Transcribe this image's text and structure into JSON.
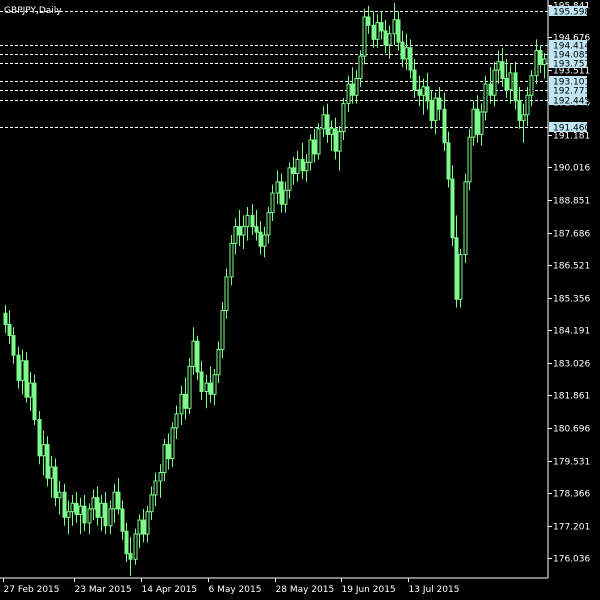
{
  "symbol_label": "GBPJPY,Daily",
  "colors": {
    "background": "#000000",
    "axis": "#ffffff",
    "bull": "#7CFC8A",
    "bear": "#7CFC8A",
    "level_line": "#ffffff",
    "level_box": "#bfe6f2"
  },
  "chart_data": {
    "type": "candlestick",
    "title": "",
    "xlabel": "",
    "ylabel": "",
    "ylim": [
      175.4,
      195.9
    ],
    "y_ticks": [
      "195.841",
      "194.676",
      "193.511",
      "192.346",
      "191.181",
      "190.016",
      "188.851",
      "187.686",
      "186.521",
      "185.356",
      "184.191",
      "183.026",
      "181.861",
      "180.696",
      "179.531",
      "178.366",
      "177.201",
      "176.036"
    ],
    "x_ticks": [
      "27 Feb 2015",
      "23 Mar 2015",
      "14 Apr 2015",
      "6 May 2015",
      "28 May 2015",
      "19 Jun 2015",
      "13 Jul 2015"
    ],
    "x_tick_index": [
      0,
      17,
      33,
      49,
      65,
      81,
      97
    ],
    "levels": [
      "195.598",
      "194.414",
      "194.085",
      "193.757",
      "193.101",
      "192.773",
      "192.445",
      "191.460"
    ],
    "candles": [
      [
        184.8,
        185.1,
        184.1,
        184.4
      ],
      [
        184.4,
        184.9,
        183.7,
        184.0
      ],
      [
        184.0,
        184.3,
        183.0,
        183.3
      ],
      [
        183.3,
        183.6,
        182.1,
        182.4
      ],
      [
        182.4,
        183.5,
        181.9,
        183.1
      ],
      [
        183.1,
        183.4,
        181.6,
        181.8
      ],
      [
        181.8,
        182.7,
        181.3,
        182.3
      ],
      [
        182.3,
        182.6,
        180.8,
        181.0
      ],
      [
        181.0,
        181.3,
        179.4,
        179.7
      ],
      [
        179.7,
        180.6,
        179.0,
        180.1
      ],
      [
        180.1,
        180.4,
        178.6,
        178.9
      ],
      [
        178.9,
        179.7,
        178.2,
        179.3
      ],
      [
        179.3,
        179.6,
        177.9,
        178.2
      ],
      [
        178.2,
        178.8,
        177.6,
        178.4
      ],
      [
        178.4,
        178.7,
        177.2,
        177.5
      ],
      [
        177.5,
        178.1,
        176.9,
        177.7
      ],
      [
        177.7,
        178.3,
        177.2,
        178.0
      ],
      [
        178.0,
        178.4,
        177.3,
        177.6
      ],
      [
        177.6,
        178.2,
        176.9,
        177.9
      ],
      [
        177.9,
        178.3,
        177.0,
        177.3
      ],
      [
        177.3,
        178.0,
        176.9,
        177.8
      ],
      [
        177.8,
        178.5,
        177.4,
        178.2
      ],
      [
        178.2,
        178.6,
        177.2,
        177.5
      ],
      [
        177.5,
        178.3,
        177.0,
        178.0
      ],
      [
        178.0,
        178.4,
        176.9,
        177.2
      ],
      [
        177.2,
        178.1,
        176.9,
        177.8
      ],
      [
        177.8,
        178.7,
        177.3,
        178.4
      ],
      [
        178.4,
        178.9,
        177.6,
        177.8
      ],
      [
        177.8,
        178.1,
        176.7,
        177.0
      ],
      [
        177.0,
        177.3,
        175.9,
        176.2
      ],
      [
        176.2,
        176.8,
        175.4,
        176.0
      ],
      [
        176.0,
        177.1,
        175.8,
        176.9
      ],
      [
        176.9,
        177.6,
        176.4,
        177.4
      ],
      [
        177.4,
        177.8,
        176.6,
        176.9
      ],
      [
        176.9,
        177.9,
        176.6,
        177.7
      ],
      [
        177.7,
        178.6,
        177.4,
        178.3
      ],
      [
        178.3,
        179.1,
        177.9,
        178.8
      ],
      [
        178.8,
        179.4,
        178.2,
        179.1
      ],
      [
        179.1,
        180.3,
        178.8,
        180.1
      ],
      [
        180.1,
        180.5,
        179.2,
        179.6
      ],
      [
        179.6,
        180.9,
        179.3,
        180.7
      ],
      [
        180.7,
        181.5,
        180.3,
        181.2
      ],
      [
        181.2,
        182.2,
        180.8,
        181.9
      ],
      [
        181.9,
        182.5,
        181.0,
        181.4
      ],
      [
        181.4,
        183.2,
        181.2,
        182.9
      ],
      [
        182.9,
        184.3,
        182.6,
        183.8
      ],
      [
        183.8,
        184.0,
        182.4,
        182.7
      ],
      [
        182.7,
        183.1,
        181.7,
        182.0
      ],
      [
        182.0,
        182.6,
        181.4,
        182.3
      ],
      [
        182.3,
        182.9,
        181.6,
        181.9
      ],
      [
        181.9,
        182.8,
        181.5,
        182.6
      ],
      [
        182.6,
        183.8,
        182.3,
        183.5
      ],
      [
        183.5,
        185.2,
        183.2,
        184.9
      ],
      [
        184.9,
        186.4,
        184.6,
        186.1
      ],
      [
        186.1,
        187.6,
        185.8,
        187.3
      ],
      [
        187.3,
        188.2,
        186.9,
        187.9
      ],
      [
        187.9,
        188.5,
        187.2,
        187.6
      ],
      [
        187.6,
        188.3,
        187.1,
        187.9
      ],
      [
        187.9,
        188.6,
        187.4,
        188.3
      ],
      [
        188.3,
        188.7,
        187.6,
        187.9
      ],
      [
        187.9,
        188.5,
        187.4,
        187.7
      ],
      [
        187.7,
        188.1,
        186.9,
        187.2
      ],
      [
        187.2,
        187.9,
        186.8,
        187.6
      ],
      [
        187.6,
        188.6,
        187.3,
        188.4
      ],
      [
        188.4,
        189.4,
        188.1,
        189.1
      ],
      [
        189.1,
        189.9,
        188.7,
        189.5
      ],
      [
        189.5,
        189.8,
        188.4,
        188.7
      ],
      [
        188.7,
        189.5,
        188.4,
        189.2
      ],
      [
        189.2,
        190.2,
        188.9,
        190.0
      ],
      [
        190.0,
        190.4,
        189.4,
        189.8
      ],
      [
        189.8,
        190.6,
        189.5,
        190.3
      ],
      [
        190.3,
        190.9,
        189.6,
        189.9
      ],
      [
        189.9,
        190.5,
        189.5,
        190.2
      ],
      [
        190.2,
        191.2,
        189.9,
        191.0
      ],
      [
        191.0,
        191.4,
        190.2,
        190.5
      ],
      [
        190.5,
        191.6,
        190.3,
        191.4
      ],
      [
        191.4,
        192.2,
        191.1,
        191.9
      ],
      [
        191.9,
        192.3,
        190.9,
        191.2
      ],
      [
        191.2,
        191.7,
        190.6,
        191.4
      ],
      [
        191.4,
        191.8,
        190.3,
        190.6
      ],
      [
        190.6,
        191.5,
        189.9,
        191.3
      ],
      [
        191.3,
        192.5,
        191.0,
        192.3
      ],
      [
        192.3,
        193.3,
        192.0,
        193.0
      ],
      [
        193.0,
        193.6,
        192.3,
        192.6
      ],
      [
        192.6,
        193.5,
        192.3,
        193.2
      ],
      [
        193.2,
        194.2,
        192.9,
        194.0
      ],
      [
        194.0,
        195.7,
        193.7,
        195.4
      ],
      [
        195.4,
        195.8,
        194.8,
        195.1
      ],
      [
        195.1,
        195.6,
        194.3,
        194.6
      ],
      [
        194.6,
        195.5,
        194.3,
        195.2
      ],
      [
        195.2,
        195.6,
        194.6,
        194.9
      ],
      [
        194.9,
        195.3,
        194.1,
        194.4
      ],
      [
        194.4,
        195.1,
        193.9,
        194.8
      ],
      [
        194.8,
        195.9,
        194.4,
        195.3
      ],
      [
        195.3,
        195.6,
        194.2,
        194.5
      ],
      [
        194.5,
        194.9,
        193.6,
        193.9
      ],
      [
        193.9,
        194.8,
        193.5,
        194.3
      ],
      [
        194.3,
        194.6,
        193.2,
        193.5
      ],
      [
        193.5,
        193.9,
        192.5,
        192.8
      ],
      [
        192.8,
        193.3,
        192.2,
        192.6
      ],
      [
        192.6,
        193.2,
        191.9,
        192.9
      ],
      [
        192.9,
        193.4,
        192.1,
        192.4
      ],
      [
        192.4,
        192.8,
        191.4,
        191.7
      ],
      [
        191.7,
        192.7,
        191.2,
        192.5
      ],
      [
        192.5,
        192.9,
        191.7,
        192.1
      ],
      [
        192.1,
        192.7,
        190.6,
        190.9
      ],
      [
        190.9,
        191.3,
        189.3,
        189.6
      ],
      [
        189.6,
        190.1,
        187.2,
        187.5
      ],
      [
        187.5,
        188.3,
        185.0,
        185.3
      ],
      [
        185.3,
        187.1,
        185.0,
        186.9
      ],
      [
        186.9,
        189.8,
        186.6,
        189.5
      ],
      [
        189.5,
        191.4,
        189.2,
        191.1
      ],
      [
        191.1,
        192.4,
        190.8,
        192.1
      ],
      [
        192.1,
        192.6,
        190.9,
        191.2
      ],
      [
        191.2,
        192.3,
        190.8,
        192.0
      ],
      [
        192.0,
        193.3,
        191.7,
        193.0
      ],
      [
        193.0,
        193.6,
        192.3,
        192.6
      ],
      [
        192.6,
        193.8,
        192.2,
        193.5
      ],
      [
        193.5,
        194.2,
        193.0,
        193.8
      ],
      [
        193.8,
        194.3,
        192.9,
        193.2
      ],
      [
        193.2,
        193.9,
        192.5,
        192.8
      ],
      [
        192.8,
        193.7,
        192.3,
        193.4
      ],
      [
        193.4,
        193.8,
        192.1,
        192.4
      ],
      [
        192.4,
        192.9,
        191.4,
        191.7
      ],
      [
        191.7,
        192.3,
        190.9,
        191.9
      ],
      [
        191.9,
        192.9,
        191.5,
        192.6
      ],
      [
        192.6,
        193.5,
        192.2,
        193.3
      ],
      [
        193.3,
        194.6,
        193.0,
        194.2
      ],
      [
        194.2,
        194.4,
        193.4,
        193.7
      ],
      [
        193.7,
        194.1,
        193.2,
        193.9
      ]
    ]
  }
}
